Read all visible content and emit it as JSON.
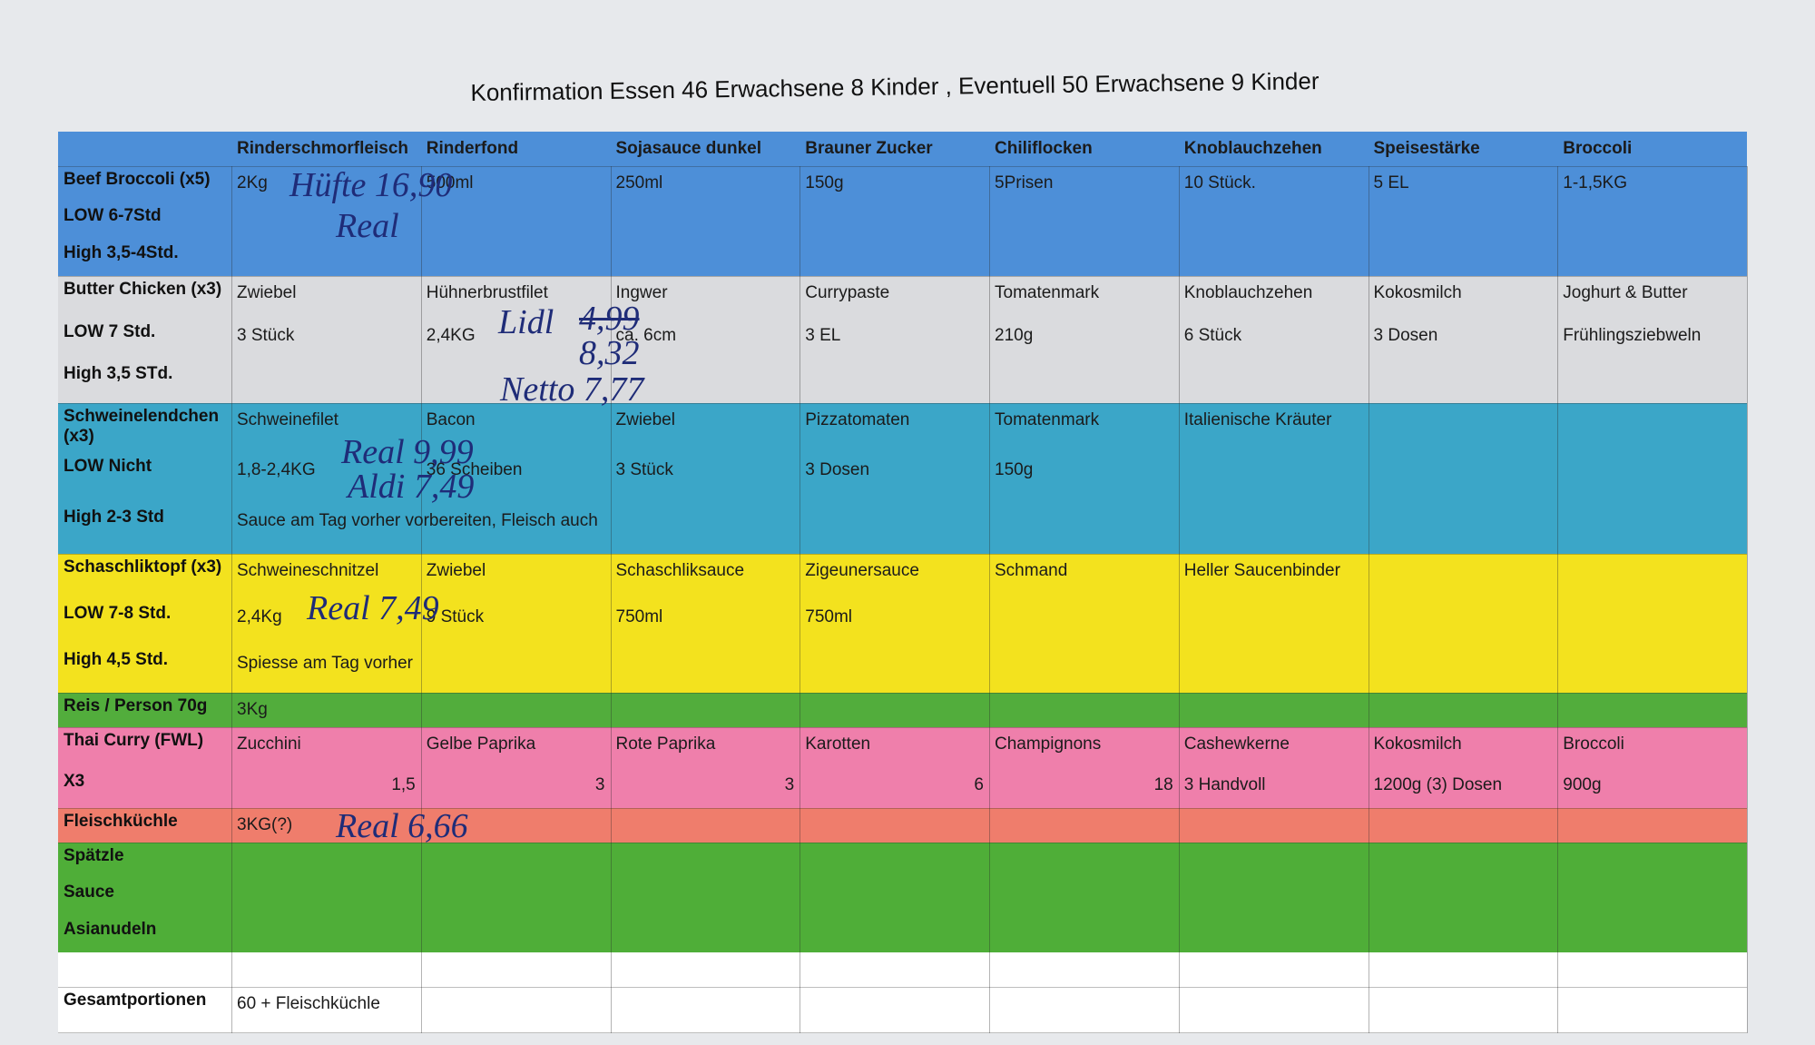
{
  "title": "Konfirmation Essen 46 Erwachsene 8 Kinder , Eventuell 50 Erwachsene 9 Kinder",
  "header": [
    "Rinderschmorfleisch",
    "Rinderfond",
    "Sojasauce dunkel",
    "Brauner Zucker",
    "Chiliflocken",
    "Knoblauchzehen",
    "Speisestärke",
    "Broccoli"
  ],
  "sections": [
    {
      "labels": [
        "Beef Broccoli (x5)",
        "LOW 6-7Std",
        "High 3,5-4Std."
      ],
      "items": [
        [
          "2Kg",
          "500ml",
          "250ml",
          "150g",
          "5Prisen",
          "10 Stück.",
          "5 EL",
          "1-1,5KG"
        ]
      ],
      "handwritten": [
        "Hüfte 16,90",
        "Real"
      ]
    },
    {
      "labels": [
        "Butter Chicken (x3)",
        "LOW 7 Std.",
        "High 3,5 STd."
      ],
      "items": [
        [
          "Zwiebel",
          "Hühnerbrustfilet",
          "Ingwer",
          "Currypaste",
          "Tomatenmark",
          "Knoblauchzehen",
          "Kokosmilch",
          "Joghurt & Butter"
        ],
        [
          "3 Stück",
          "2,4KG",
          "ca. 6cm",
          "3 EL",
          "210g",
          "6 Stück",
          "3 Dosen",
          "Frühlingsziebweln"
        ]
      ],
      "handwritten": [
        "Lidl",
        "4,99",
        "8,32",
        "Netto 7,77"
      ]
    },
    {
      "labels": [
        "Schweinelendchen (x3)",
        "LOW Nicht",
        "High 2-3 Std"
      ],
      "items": [
        [
          "Schweinefilet",
          "Bacon",
          "Zwiebel",
          "Pizzatomaten",
          "Tomatenmark",
          "Italienische Kräuter"
        ],
        [
          "1,8-2,4KG",
          "36 Scheiben",
          "3 Stück",
          "3 Dosen",
          "150g"
        ],
        [
          "Sauce am Tag vorher vorbereiten, Fleisch auch"
        ]
      ],
      "handwritten": [
        "Real 9,99",
        "Aldi 7,49"
      ]
    },
    {
      "labels": [
        "Schaschliktopf (x3)",
        "LOW 7-8 Std.",
        "High 4,5 Std."
      ],
      "items": [
        [
          "Schweineschnitzel",
          "Zwiebel",
          "Schaschliksauce",
          "Zigeunersauce",
          "Schmand",
          "Heller Saucenbinder"
        ],
        [
          "2,4Kg",
          "9 Stück",
          "750ml",
          "750ml"
        ],
        [
          "Spiesse am Tag vorher"
        ]
      ],
      "handwritten": [
        "Real 7,49"
      ]
    },
    {
      "labels": [
        "Reis / Person 70g"
      ],
      "items": [
        [
          "3Kg"
        ]
      ]
    },
    {
      "labels": [
        "Thai Curry (FWL)",
        "X3"
      ],
      "items": [
        [
          "Zucchini",
          "Gelbe Paprika",
          "Rote Paprika",
          "Karotten",
          "Champignons",
          "Cashewkerne",
          "Kokosmilch",
          "Broccoli"
        ],
        [
          "1,5",
          "3",
          "3",
          "6",
          "18",
          "3 Handvoll",
          "1200g (3) Dosen",
          "900g"
        ]
      ]
    },
    {
      "labels": [
        "Fleischküchle"
      ],
      "items": [
        [
          "3KG(?)"
        ]
      ],
      "handwritten": [
        "Real 6,66"
      ]
    },
    {
      "labels": [
        "Spätzle",
        "Sauce",
        "Asianudeln"
      ]
    },
    {
      "labels": [
        "Gesamtportionen"
      ],
      "items": [
        [
          "60 + Fleischküchle"
        ]
      ]
    }
  ]
}
